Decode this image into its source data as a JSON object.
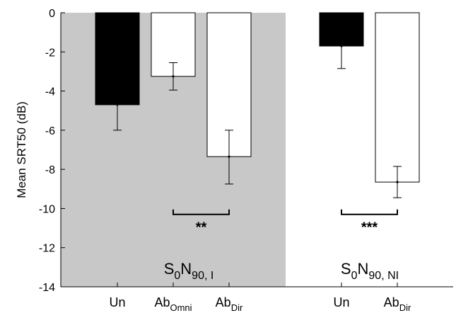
{
  "chart_data": {
    "type": "bar",
    "ylabel": "Mean SRT50 (dB)",
    "ylim": [
      -14,
      0
    ],
    "yticks": [
      "0",
      "-2",
      "-4",
      "-6",
      "-8",
      "-10",
      "-12",
      "-14"
    ],
    "grid": false,
    "panels": [
      {
        "condition": {
          "main": "S",
          "sub1": "0",
          "mid": "N",
          "sub2": "90, I"
        },
        "shaded": true,
        "shade_color": "#c8c8c8",
        "bars": [
          {
            "category": {
              "base": "Un",
              "sub": ""
            },
            "value": -4.7,
            "err_low": -6.0,
            "err_high": -4.7,
            "fill": "#000000"
          },
          {
            "category": {
              "base": "Ab",
              "sub": "Omni"
            },
            "value": -3.25,
            "err_low": -3.95,
            "err_high": -2.55,
            "fill": "#ffffff"
          },
          {
            "category": {
              "base": "Ab",
              "sub": "Dir"
            },
            "value": -7.35,
            "err_low": -8.75,
            "err_high": -6.0,
            "fill": "#ffffff"
          }
        ],
        "significance": {
          "from": 1,
          "to": 2,
          "label": "**"
        }
      },
      {
        "condition": {
          "main": "S",
          "sub1": "0",
          "mid": "N",
          "sub2": "90, NI"
        },
        "shaded": false,
        "bars": [
          {
            "category": {
              "base": "Un",
              "sub": ""
            },
            "value": -1.7,
            "err_low": -2.85,
            "err_high": -1.7,
            "fill": "#000000"
          },
          {
            "category": {
              "base": "Ab",
              "sub": "Dir"
            },
            "value": -8.65,
            "err_low": -9.45,
            "err_high": -7.85,
            "fill": "#ffffff"
          }
        ],
        "significance": {
          "from": 0,
          "to": 1,
          "label": "***"
        }
      }
    ]
  }
}
